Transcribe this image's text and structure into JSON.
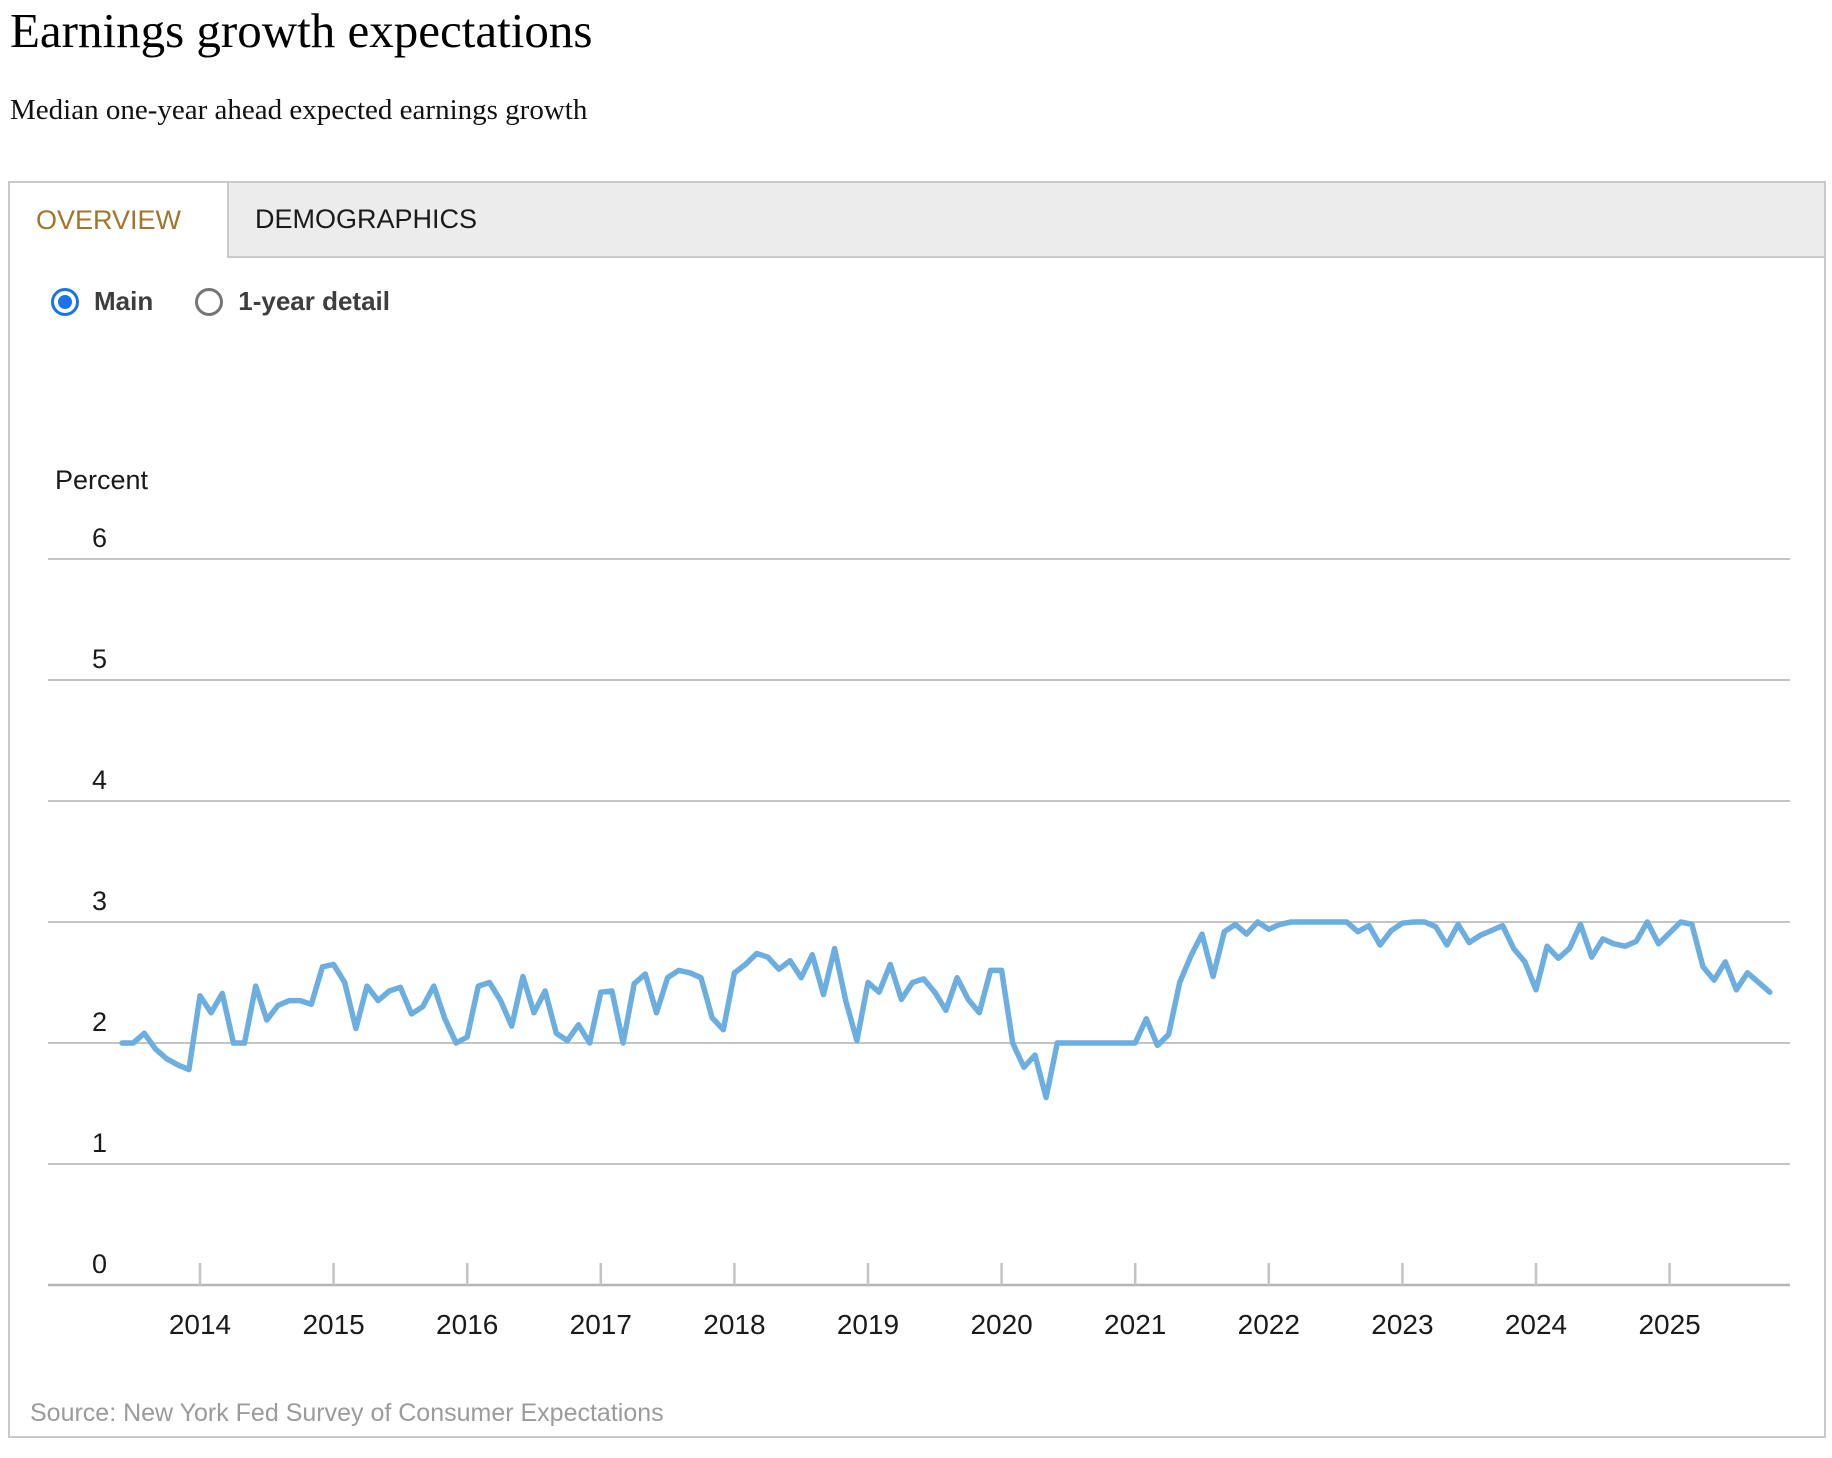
{
  "page": {
    "title": "Earnings growth expectations",
    "subtitle": "Median one-year ahead expected earnings growth"
  },
  "tabs": [
    {
      "label": "OVERVIEW",
      "active": true
    },
    {
      "label": "DEMOGRAPHICS",
      "active": false
    }
  ],
  "controls": {
    "radios": [
      {
        "label": "Main",
        "selected": true
      },
      {
        "label": "1-year detail",
        "selected": false
      }
    ]
  },
  "source": "Source: New York Fed Survey of Consumer Expectations",
  "colors": {
    "line_blue": "#6caedf",
    "radio_blue": "#1a73e8",
    "accent_gold": "#a3752b",
    "grid_gray": "#c4c4c4",
    "axis_gray": "#b5b5b5",
    "tick_label": "#1a1a1a",
    "tab_strip_bg": "#ececec",
    "panel_border": "#c9c9c9",
    "source_gray": "#9b9b9b"
  },
  "chart_data": {
    "type": "line",
    "title": "Median one-year ahead expected earnings growth",
    "ylabel": "Percent",
    "xlabel": "",
    "ylim": [
      0,
      6
    ],
    "y_ticks": [
      0,
      1,
      2,
      3,
      4,
      5,
      6
    ],
    "x_year_ticks": [
      2014,
      2015,
      2016,
      2017,
      2018,
      2019,
      2020,
      2021,
      2022,
      2023,
      2024,
      2025
    ],
    "grid": "horizontal",
    "legend": "none",
    "start_month": "2013-06",
    "end_month": "2025-10",
    "frequency": "monthly",
    "series": [
      {
        "name": "Median expected earnings growth (percent)",
        "values": [
          2.0,
          2.0,
          2.08,
          1.95,
          1.87,
          1.82,
          1.78,
          2.39,
          2.25,
          2.41,
          2.0,
          2.0,
          2.47,
          2.19,
          2.31,
          2.35,
          2.35,
          2.32,
          2.63,
          2.65,
          2.5,
          2.12,
          2.47,
          2.35,
          2.43,
          2.46,
          2.24,
          2.3,
          2.47,
          2.2,
          2.0,
          2.05,
          2.47,
          2.5,
          2.35,
          2.14,
          2.55,
          2.25,
          2.43,
          2.08,
          2.02,
          2.15,
          2.0,
          2.42,
          2.43,
          2.0,
          2.49,
          2.57,
          2.25,
          2.54,
          2.6,
          2.58,
          2.54,
          2.21,
          2.11,
          2.58,
          2.65,
          2.74,
          2.71,
          2.61,
          2.68,
          2.54,
          2.73,
          2.4,
          2.78,
          2.35,
          2.02,
          2.5,
          2.42,
          2.65,
          2.36,
          2.5,
          2.53,
          2.42,
          2.27,
          2.54,
          2.36,
          2.25,
          2.6,
          2.6,
          2.0,
          1.8,
          1.9,
          1.55,
          2.0,
          2.0,
          2.0,
          2.0,
          2.0,
          2.0,
          2.0,
          2.0,
          2.2,
          1.98,
          2.07,
          2.5,
          2.72,
          2.9,
          2.55,
          2.92,
          2.98,
          2.9,
          3.0,
          2.94,
          2.98,
          3.0,
          3.0,
          3.0,
          3.0,
          3.0,
          3.0,
          2.92,
          2.97,
          2.81,
          2.93,
          2.99,
          3.0,
          3.0,
          2.96,
          2.81,
          2.98,
          2.83,
          2.89,
          2.93,
          2.97,
          2.78,
          2.67,
          2.44,
          2.8,
          2.7,
          2.78,
          2.98,
          2.71,
          2.86,
          2.82,
          2.8,
          2.84,
          3.0,
          2.82,
          2.91,
          3.0,
          2.98,
          2.63,
          2.52,
          2.67,
          2.44,
          2.58,
          2.5,
          2.42
        ]
      }
    ]
  }
}
